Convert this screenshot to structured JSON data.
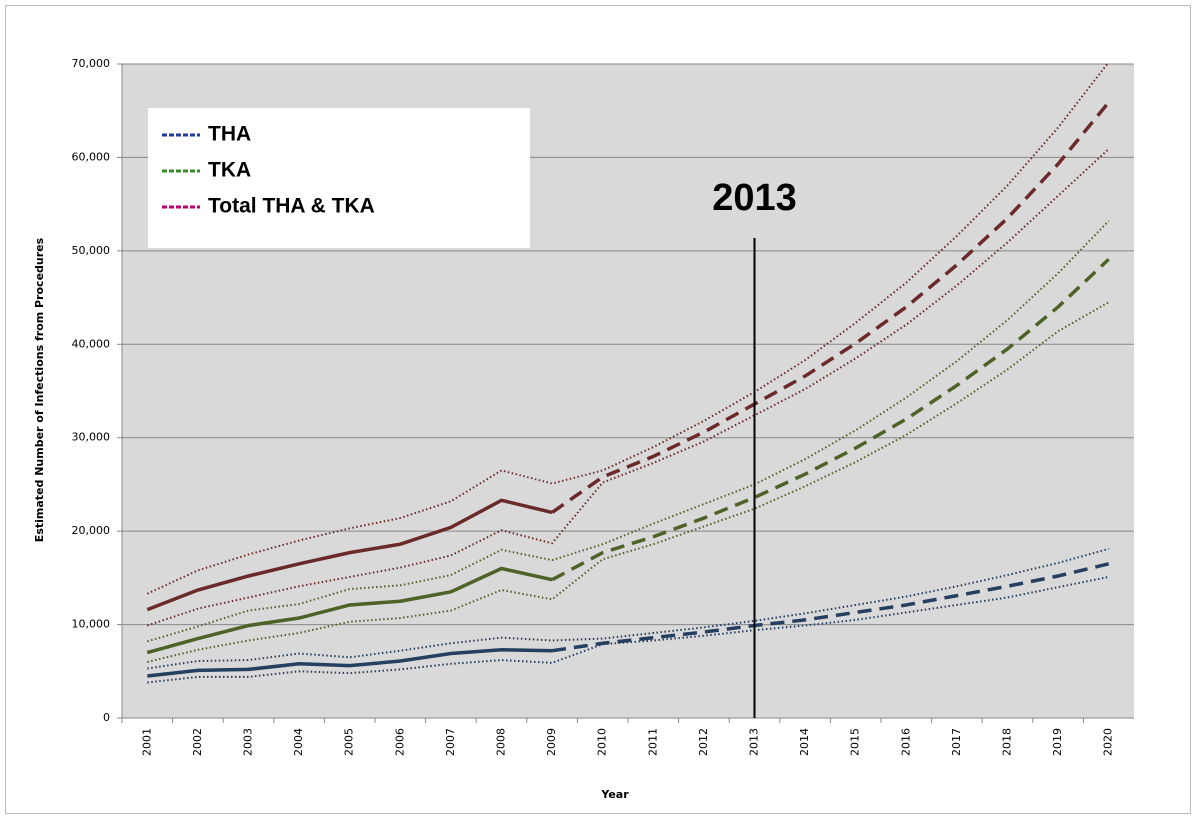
{
  "chart_data": {
    "type": "line",
    "x_label": "Year",
    "y_label": "Estimated Number of Infections from Procedures",
    "categories": [
      "2001",
      "2002",
      "2003",
      "2004",
      "2005",
      "2006",
      "2007",
      "2008",
      "2009",
      "2010",
      "2011",
      "2012",
      "2013",
      "2014",
      "2015",
      "2016",
      "2017",
      "2018",
      "2019",
      "2020"
    ],
    "projection_from": "2009",
    "ylim": [
      0,
      70000
    ],
    "yticks": [
      0,
      {
        "value": 10000,
        "label": "10,000"
      },
      {
        "value": 20000,
        "label": "20,000"
      },
      {
        "value": 30000,
        "label": "30,000"
      },
      {
        "value": 40000,
        "label": "40,000"
      },
      {
        "value": 50000,
        "label": "50,000"
      },
      {
        "value": 60000,
        "label": "60,000"
      },
      {
        "value": 70000,
        "label": "70,000"
      }
    ],
    "grid": true,
    "annotation": {
      "text": "2013",
      "x": "2013"
    },
    "series": [
      {
        "name": "THA",
        "color": "#243f60",
        "legend_color": "#1f3a9e",
        "values": [
          4500,
          5100,
          5200,
          5800,
          5600,
          6100,
          6900,
          7300,
          7200,
          8000,
          8600,
          9200,
          9900,
          10500,
          11300,
          12100,
          13100,
          14100,
          15200,
          16500
        ],
        "upper": [
          5300,
          6100,
          6200,
          6900,
          6500,
          7200,
          8000,
          8600,
          8300,
          8500,
          9100,
          9700,
          10400,
          11200,
          12100,
          13000,
          14100,
          15300,
          16600,
          18100
        ],
        "lower": [
          3800,
          4400,
          4400,
          5000,
          4800,
          5200,
          5800,
          6200,
          5900,
          7900,
          8300,
          8800,
          9400,
          9900,
          10500,
          11300,
          12100,
          12900,
          14000,
          15100
        ]
      },
      {
        "name": "TKA",
        "color": "#4f6228",
        "legend_color": "#3a8a2a",
        "values": [
          7000,
          8500,
          9900,
          10700,
          12100,
          12500,
          13500,
          16000,
          14800,
          17700,
          19400,
          21400,
          23600,
          26100,
          28900,
          32000,
          35600,
          39500,
          44000,
          49100
        ],
        "upper": [
          8200,
          9800,
          11500,
          12200,
          13800,
          14200,
          15300,
          18000,
          16900,
          18600,
          20800,
          22900,
          25000,
          27700,
          30800,
          34300,
          38200,
          42600,
          47600,
          53200
        ],
        "lower": [
          6000,
          7300,
          8300,
          9100,
          10300,
          10700,
          11500,
          13700,
          12700,
          17000,
          18600,
          20500,
          22400,
          24800,
          27400,
          30300,
          33700,
          37300,
          41400,
          44500
        ]
      },
      {
        "name": "Total THA & TKA",
        "color": "#6b2a2a",
        "legend_color": "#c0006a",
        "values": [
          11600,
          13700,
          15200,
          16500,
          17700,
          18600,
          20400,
          23300,
          22000,
          25800,
          28000,
          30600,
          33600,
          36600,
          40100,
          44000,
          48500,
          53500,
          59300,
          65900
        ],
        "upper": [
          13300,
          15800,
          17500,
          19000,
          20300,
          21400,
          23200,
          26500,
          25100,
          26500,
          29000,
          31800,
          34900,
          38300,
          42300,
          46600,
          51600,
          57000,
          63200,
          70200
        ],
        "lower": [
          9900,
          11700,
          12900,
          14100,
          15100,
          16100,
          17400,
          20100,
          18700,
          25200,
          27300,
          29600,
          32400,
          35200,
          38500,
          42100,
          46300,
          50900,
          55900,
          60900
        ]
      }
    ]
  }
}
